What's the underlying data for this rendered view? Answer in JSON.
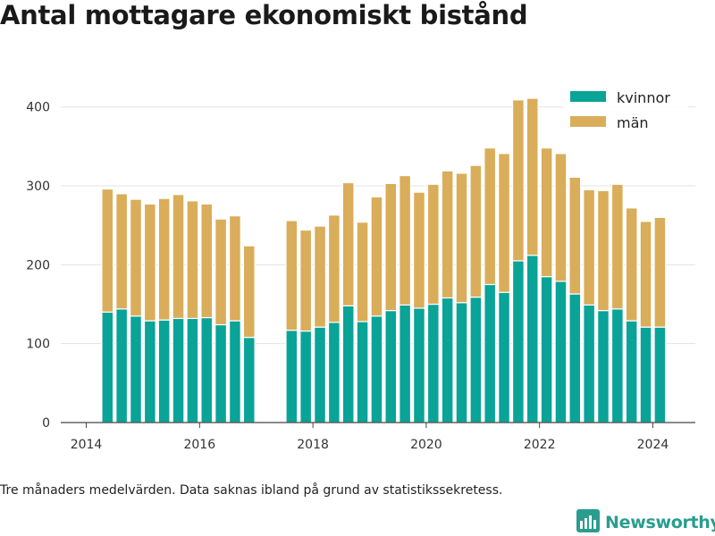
{
  "chart_data": {
    "type": "bar",
    "stacked": true,
    "title": "Antal mottagare ekonomiskt bistånd",
    "caption": "Tre månaders medelvärden. Data saknas ibland på grund av statistikssekretess.",
    "x_ticks": [
      "2014",
      "2016",
      "2018",
      "2020",
      "2022",
      "2024"
    ],
    "y_ticks": [
      "0",
      "100",
      "200",
      "300",
      "400"
    ],
    "ylim": [
      0,
      445
    ],
    "xlim": [
      2013.55,
      2024.75
    ],
    "grid": true,
    "legend_position": "top-right",
    "x": [
      2014.375,
      2014.625,
      2014.875,
      2015.125,
      2015.375,
      2015.625,
      2015.875,
      2016.125,
      2016.375,
      2016.625,
      2016.875,
      2017.625,
      2017.875,
      2018.125,
      2018.375,
      2018.625,
      2018.875,
      2019.125,
      2019.375,
      2019.625,
      2019.875,
      2020.125,
      2020.375,
      2020.625,
      2020.875,
      2021.125,
      2021.375,
      2021.625,
      2021.875,
      2022.125,
      2022.375,
      2022.625,
      2022.875,
      2023.125,
      2023.375,
      2023.625,
      2023.875,
      2024.125
    ],
    "series": [
      {
        "name": "kvinnor",
        "color": "#0aa398",
        "values": [
          140,
          144,
          135,
          129,
          130,
          132,
          132,
          133,
          124,
          129,
          108,
          117,
          116,
          121,
          127,
          148,
          128,
          135,
          142,
          149,
          145,
          150,
          158,
          152,
          159,
          175,
          165,
          205,
          212,
          185,
          179,
          163,
          149,
          142,
          144,
          129,
          121,
          121
        ]
      },
      {
        "name": "män",
        "color": "#d9ad5a",
        "values": [
          156,
          146,
          148,
          148,
          154,
          157,
          149,
          144,
          134,
          133,
          116,
          139,
          128,
          128,
          136,
          156,
          126,
          151,
          161,
          164,
          147,
          152,
          161,
          164,
          167,
          173,
          176,
          204,
          199,
          163,
          162,
          148,
          146,
          152,
          158,
          143,
          134,
          139
        ]
      }
    ]
  },
  "footer": {
    "caption": "Tre månaders medelvärden. Data saknas ibland på grund av statistikssekretess.",
    "brand": "Newsworthy",
    "brand_icon": "bar-chart-logo-icon",
    "brand_color": "#2a9d8f"
  }
}
